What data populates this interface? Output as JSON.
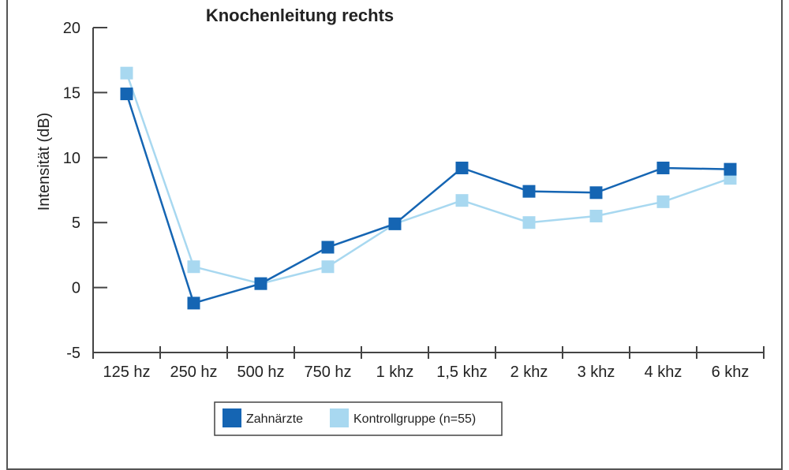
{
  "chart_data": {
    "type": "line",
    "title": "Knochenleitung rechts",
    "xlabel": "",
    "ylabel": "Intensität (dB)",
    "categories": [
      "125 hz",
      "250 hz",
      "500 hz",
      "750 hz",
      "1 khz",
      "1,5 khz",
      "2 khz",
      "3 khz",
      "4 khz",
      "6 khz"
    ],
    "ylim": [
      -5,
      20
    ],
    "yticks": [
      20,
      15,
      10,
      5,
      0,
      -5
    ],
    "ytick_labels": [
      "20",
      "15",
      "10",
      "5",
      "0",
      "-5"
    ],
    "grid": false,
    "legend_position": "bottom",
    "series": [
      {
        "name": "Zahnärzte",
        "color": "#1565b3",
        "values": [
          14.9,
          -1.2,
          0.3,
          3.1,
          4.9,
          9.2,
          7.4,
          7.3,
          9.2,
          9.1
        ]
      },
      {
        "name": "Kontrollgruppe (n=55)",
        "color": "#a8d8f0",
        "values": [
          16.5,
          1.6,
          0.3,
          1.6,
          4.9,
          6.7,
          5.0,
          5.5,
          6.6,
          8.4
        ]
      }
    ]
  }
}
